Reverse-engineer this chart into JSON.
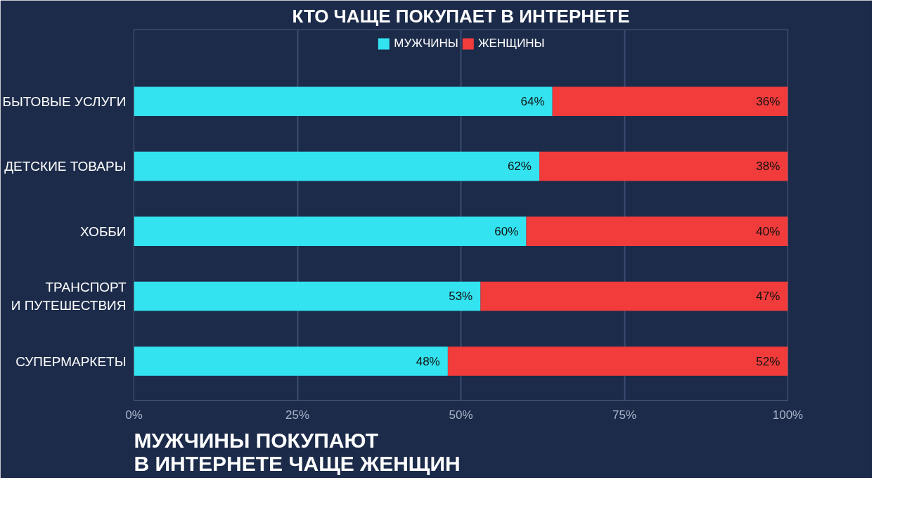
{
  "chart_data": {
    "type": "bar",
    "orientation": "horizontal",
    "stacked": true,
    "title": "КТО ЧАЩЕ ПОКУПАЕТ В ИНТЕРНЕТЕ",
    "categories": [
      "БЫТОВЫЕ УСЛУГИ",
      "ДЕТСКИЕ ТОВАРЫ",
      "ХОББИ",
      "ТРАНСПОРТ\nИ ПУТЕШЕСТВИЯ",
      "СУПЕРМАРКЕТЫ"
    ],
    "series": [
      {
        "name": "МУЖЧИНЫ",
        "color": "#33e3ef",
        "values": [
          64,
          62,
          60,
          53,
          48
        ],
        "value_labels": [
          "64%",
          "62%",
          "60%",
          "53%",
          "48%"
        ]
      },
      {
        "name": "ЖЕНЩИНЫ",
        "color": "#f23b3b",
        "values": [
          36,
          38,
          40,
          47,
          52
        ],
        "value_labels": [
          "36%",
          "38%",
          "40%",
          "47%",
          "52%"
        ]
      }
    ],
    "xlim": [
      0,
      100
    ],
    "xticks": [
      {
        "value": 0,
        "label": "0%"
      },
      {
        "value": 25,
        "label": "25%"
      },
      {
        "value": 50,
        "label": "50%"
      },
      {
        "value": 75,
        "label": "75%"
      },
      {
        "value": 100,
        "label": "100%"
      }
    ],
    "grid": "x",
    "legend": "top",
    "annotations": [
      "МУЖЧИНЫ ПОКУПАЮТ\nВ ИНТЕРНЕТЕ ЧАЩЕ ЖЕНЩИН"
    ]
  }
}
